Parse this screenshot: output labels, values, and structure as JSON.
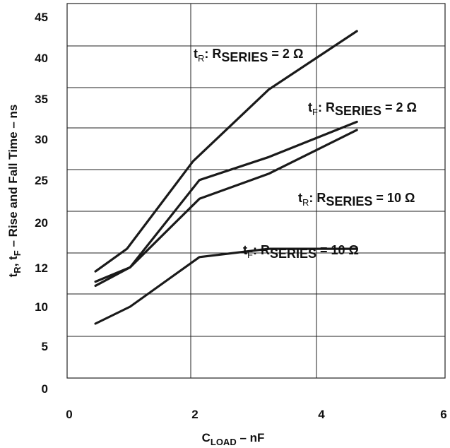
{
  "chart_data": {
    "type": "line",
    "xlabel": "C",
    "xlabel_sub": "LOAD",
    "xlabel_suffix": " – nF",
    "ylabel": "t_R, t_F – Rise and Fall Time – ns",
    "ylabel_parts": [
      "t",
      "R",
      ", t",
      "F",
      " – Rise and Fall Time – ns"
    ],
    "x_ticks": [
      0,
      2,
      4,
      6
    ],
    "xlim": [
      0,
      6
    ],
    "y_tick_labels": [
      "0",
      "5",
      "10",
      "12",
      "20",
      "25",
      "30",
      "35",
      "40",
      "45"
    ],
    "grid": true,
    "series": [
      {
        "label": {
          "t": "t",
          "t_sub": "R",
          "mid": ": R",
          "r_sub": "SERIES",
          "value": " = 2 Ω"
        },
        "x": [
          0.45,
          0.95,
          2.0,
          3.2,
          4.6
        ],
        "y_index": [
          2.55,
          3.1,
          5.2,
          6.95,
          8.35
        ]
      },
      {
        "label": {
          "t": "t",
          "t_sub": "F",
          "mid": ": R",
          "r_sub": "SERIES",
          "value": " = 2 Ω"
        },
        "x": [
          0.45,
          1.0,
          2.1,
          3.2,
          4.6
        ],
        "y_index": [
          2.3,
          2.65,
          4.75,
          5.3,
          6.15
        ]
      },
      {
        "label": {
          "t": "t",
          "t_sub": "R",
          "mid": ": R",
          "r_sub": "SERIES",
          "value": " = 10 Ω"
        },
        "x": [
          0.45,
          1.0,
          2.1,
          3.2,
          4.6
        ],
        "y_index": [
          2.2,
          2.65,
          4.3,
          4.9,
          5.95
        ]
      },
      {
        "label": {
          "t": "t",
          "t_sub": "F",
          "mid": ": R",
          "r_sub": "SERIES",
          "value": " = 10 Ω"
        },
        "x": [
          0.45,
          1.0,
          2.1,
          3.2,
          4.6
        ],
        "y_index": [
          1.3,
          1.7,
          2.9,
          3.1,
          3.1
        ]
      }
    ]
  }
}
